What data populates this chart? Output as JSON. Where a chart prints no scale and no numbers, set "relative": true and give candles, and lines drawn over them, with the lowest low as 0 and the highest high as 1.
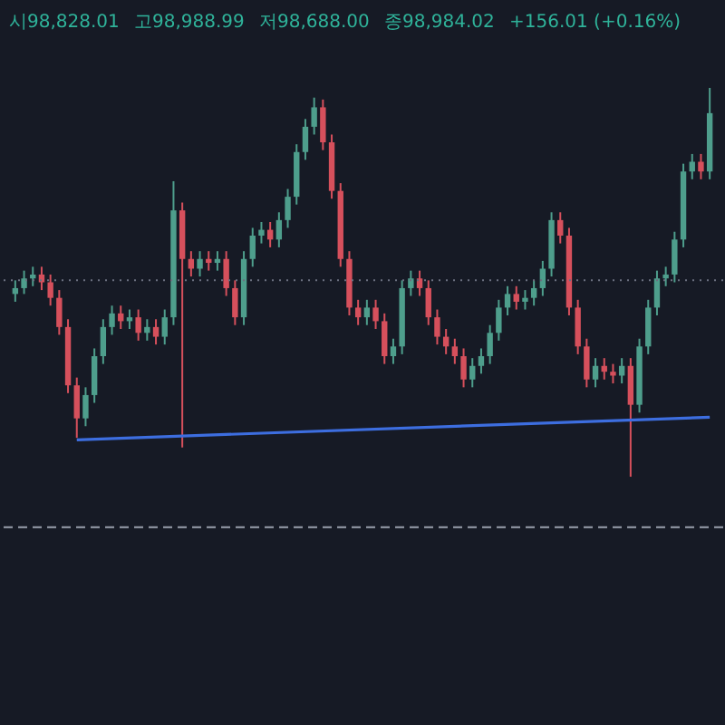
{
  "chart_data": {
    "type": "candlestick",
    "relative": true,
    "annotations": [
      "시98,828.01",
      "고98,988.99",
      "저98,688.00",
      "종98,984.02",
      "+156.01 (+0.16%)"
    ],
    "categories": [
      null,
      null,
      null,
      null,
      null,
      null,
      null,
      null,
      null,
      null,
      null,
      null,
      null,
      null,
      null,
      null,
      null,
      null,
      null,
      null,
      null,
      null,
      null,
      null,
      null,
      null,
      null,
      null,
      null,
      null,
      null,
      null,
      null,
      null,
      null,
      null,
      null,
      null,
      null,
      null,
      null,
      null,
      null,
      null,
      null,
      null,
      null,
      null,
      null,
      null,
      null,
      null,
      null,
      null,
      null,
      null,
      null,
      null,
      null,
      null,
      null,
      null,
      null,
      null,
      null,
      null,
      null,
      null,
      null,
      null,
      null,
      null,
      null,
      null,
      null,
      null,
      null,
      null,
      null,
      null
    ],
    "ohlc": [
      [
        0.47,
        0.505,
        0.45,
        0.485
      ],
      [
        0.485,
        0.53,
        0.47,
        0.51
      ],
      [
        0.51,
        0.54,
        0.49,
        0.52
      ],
      [
        0.52,
        0.54,
        0.48,
        0.5
      ],
      [
        0.5,
        0.52,
        0.44,
        0.46
      ],
      [
        0.46,
        0.48,
        0.365,
        0.385
      ],
      [
        0.385,
        0.405,
        0.215,
        0.235
      ],
      [
        0.235,
        0.255,
        0.1,
        0.15
      ],
      [
        0.15,
        0.23,
        0.13,
        0.21
      ],
      [
        0.21,
        0.33,
        0.19,
        0.31
      ],
      [
        0.31,
        0.405,
        0.29,
        0.385
      ],
      [
        0.385,
        0.44,
        0.365,
        0.42
      ],
      [
        0.42,
        0.44,
        0.38,
        0.4
      ],
      [
        0.4,
        0.43,
        0.38,
        0.41
      ],
      [
        0.41,
        0.43,
        0.35,
        0.37
      ],
      [
        0.37,
        0.405,
        0.35,
        0.385
      ],
      [
        0.385,
        0.405,
        0.34,
        0.36
      ],
      [
        0.36,
        0.43,
        0.34,
        0.41
      ],
      [
        0.41,
        0.76,
        0.39,
        0.685
      ],
      [
        0.685,
        0.705,
        0.075,
        0.56
      ],
      [
        0.56,
        0.58,
        0.515,
        0.535
      ],
      [
        0.535,
        0.58,
        0.515,
        0.56
      ],
      [
        0.56,
        0.58,
        0.53,
        0.55
      ],
      [
        0.55,
        0.58,
        0.53,
        0.56
      ],
      [
        0.56,
        0.58,
        0.465,
        0.485
      ],
      [
        0.485,
        0.505,
        0.39,
        0.41
      ],
      [
        0.41,
        0.58,
        0.39,
        0.56
      ],
      [
        0.56,
        0.64,
        0.54,
        0.62
      ],
      [
        0.62,
        0.655,
        0.6,
        0.635
      ],
      [
        0.635,
        0.655,
        0.59,
        0.61
      ],
      [
        0.61,
        0.68,
        0.59,
        0.66
      ],
      [
        0.66,
        0.74,
        0.64,
        0.72
      ],
      [
        0.72,
        0.855,
        0.7,
        0.835
      ],
      [
        0.835,
        0.92,
        0.815,
        0.9
      ],
      [
        0.9,
        0.975,
        0.88,
        0.95
      ],
      [
        0.95,
        0.97,
        0.84,
        0.86
      ],
      [
        0.86,
        0.88,
        0.715,
        0.735
      ],
      [
        0.735,
        0.755,
        0.54,
        0.56
      ],
      [
        0.56,
        0.58,
        0.415,
        0.435
      ],
      [
        0.435,
        0.455,
        0.39,
        0.41
      ],
      [
        0.41,
        0.455,
        0.39,
        0.435
      ],
      [
        0.435,
        0.455,
        0.38,
        0.4
      ],
      [
        0.4,
        0.42,
        0.29,
        0.31
      ],
      [
        0.31,
        0.355,
        0.29,
        0.335
      ],
      [
        0.335,
        0.505,
        0.315,
        0.485
      ],
      [
        0.485,
        0.53,
        0.465,
        0.51
      ],
      [
        0.51,
        0.53,
        0.465,
        0.485
      ],
      [
        0.485,
        0.505,
        0.39,
        0.41
      ],
      [
        0.41,
        0.43,
        0.34,
        0.36
      ],
      [
        0.36,
        0.38,
        0.315,
        0.335
      ],
      [
        0.335,
        0.355,
        0.29,
        0.31
      ],
      [
        0.31,
        0.33,
        0.23,
        0.25
      ],
      [
        0.25,
        0.305,
        0.23,
        0.285
      ],
      [
        0.285,
        0.33,
        0.265,
        0.31
      ],
      [
        0.31,
        0.39,
        0.29,
        0.37
      ],
      [
        0.37,
        0.455,
        0.35,
        0.435
      ],
      [
        0.435,
        0.49,
        0.415,
        0.47
      ],
      [
        0.47,
        0.49,
        0.43,
        0.45
      ],
      [
        0.45,
        0.48,
        0.43,
        0.46
      ],
      [
        0.46,
        0.505,
        0.44,
        0.485
      ],
      [
        0.485,
        0.555,
        0.465,
        0.535
      ],
      [
        0.535,
        0.68,
        0.515,
        0.66
      ],
      [
        0.66,
        0.68,
        0.6,
        0.62
      ],
      [
        0.62,
        0.64,
        0.415,
        0.435
      ],
      [
        0.435,
        0.455,
        0.315,
        0.335
      ],
      [
        0.335,
        0.355,
        0.23,
        0.25
      ],
      [
        0.25,
        0.305,
        0.23,
        0.285
      ],
      [
        0.285,
        0.305,
        0.25,
        0.27
      ],
      [
        0.27,
        0.29,
        0.24,
        0.26
      ],
      [
        0.26,
        0.305,
        0.24,
        0.285
      ],
      [
        0.285,
        0.305,
        0,
        0.185
      ],
      [
        0.185,
        0.355,
        0.165,
        0.335
      ],
      [
        0.335,
        0.455,
        0.315,
        0.435
      ],
      [
        0.435,
        0.53,
        0.415,
        0.51
      ],
      [
        0.51,
        0.54,
        0.49,
        0.52
      ],
      [
        0.52,
        0.63,
        0.5,
        0.61
      ],
      [
        0.61,
        0.805,
        0.59,
        0.785
      ],
      [
        0.785,
        0.83,
        0.765,
        0.81
      ],
      [
        0.81,
        0.83,
        0.765,
        0.785
      ],
      [
        0.785,
        1,
        0.765,
        0.935
      ]
    ],
    "colors": [
      "#4e9e8c",
      "#4e9e8c",
      "#4e9e8c",
      "#d6505c",
      "#d6505c",
      "#d6505c",
      "#d6505c",
      "#d6505c",
      "#4e9e8c",
      "#4e9e8c",
      "#4e9e8c",
      "#4e9e8c",
      "#d6505c",
      "#4e9e8c",
      "#d6505c",
      "#4e9e8c",
      "#d6505c",
      "#4e9e8c",
      "#4e9e8c",
      "#d6505c",
      "#d6505c",
      "#4e9e8c",
      "#d6505c",
      "#4e9e8c",
      "#d6505c",
      "#d6505c",
      "#4e9e8c",
      "#4e9e8c",
      "#4e9e8c",
      "#d6505c",
      "#4e9e8c",
      "#4e9e8c",
      "#4e9e8c",
      "#4e9e8c",
      "#4e9e8c",
      "#d6505c",
      "#d6505c",
      "#d6505c",
      "#d6505c",
      "#d6505c",
      "#4e9e8c",
      "#d6505c",
      "#d6505c",
      "#4e9e8c",
      "#4e9e8c",
      "#4e9e8c",
      "#d6505c",
      "#d6505c",
      "#d6505c",
      "#d6505c",
      "#d6505c",
      "#d6505c",
      "#4e9e8c",
      "#4e9e8c",
      "#4e9e8c",
      "#4e9e8c",
      "#4e9e8c",
      "#d6505c",
      "#4e9e8c",
      "#4e9e8c",
      "#4e9e8c",
      "#4e9e8c",
      "#d6505c",
      "#d6505c",
      "#d6505c",
      "#d6505c",
      "#4e9e8c",
      "#d6505c",
      "#d6505c",
      "#4e9e8c",
      "#d6505c",
      "#4e9e8c",
      "#4e9e8c",
      "#4e9e8c",
      "#4e9e8c",
      "#4e9e8c",
      "#4e9e8c",
      "#4e9e8c",
      "#d6505c",
      "#4e9e8c"
    ],
    "series": [
      {
        "type": "line",
        "color": "#3d6ee0",
        "values": [
          null,
          null,
          null,
          null,
          null,
          null,
          null,
          0.095,
          null,
          null,
          null,
          null,
          null,
          null,
          null,
          null,
          null,
          null,
          null,
          null,
          null,
          null,
          null,
          null,
          null,
          null,
          null,
          null,
          null,
          null,
          null,
          null,
          null,
          null,
          null,
          null,
          null,
          null,
          null,
          null,
          null,
          null,
          null,
          null,
          null,
          null,
          null,
          null,
          null,
          null,
          null,
          null,
          null,
          null,
          null,
          null,
          null,
          null,
          null,
          null,
          null,
          null,
          null,
          null,
          null,
          null,
          null,
          null,
          null,
          null,
          null,
          null,
          null,
          null,
          null,
          null,
          null,
          null,
          null,
          0.153
        ]
      }
    ],
    "ref_lines": [
      {
        "axis": "y",
        "value": 0.505,
        "color": "#6b7080",
        "line_style": "dotted"
      },
      {
        "axis": "y",
        "value": -0.13,
        "color": "#9aa0ad",
        "line_style": "dashed"
      }
    ]
  }
}
